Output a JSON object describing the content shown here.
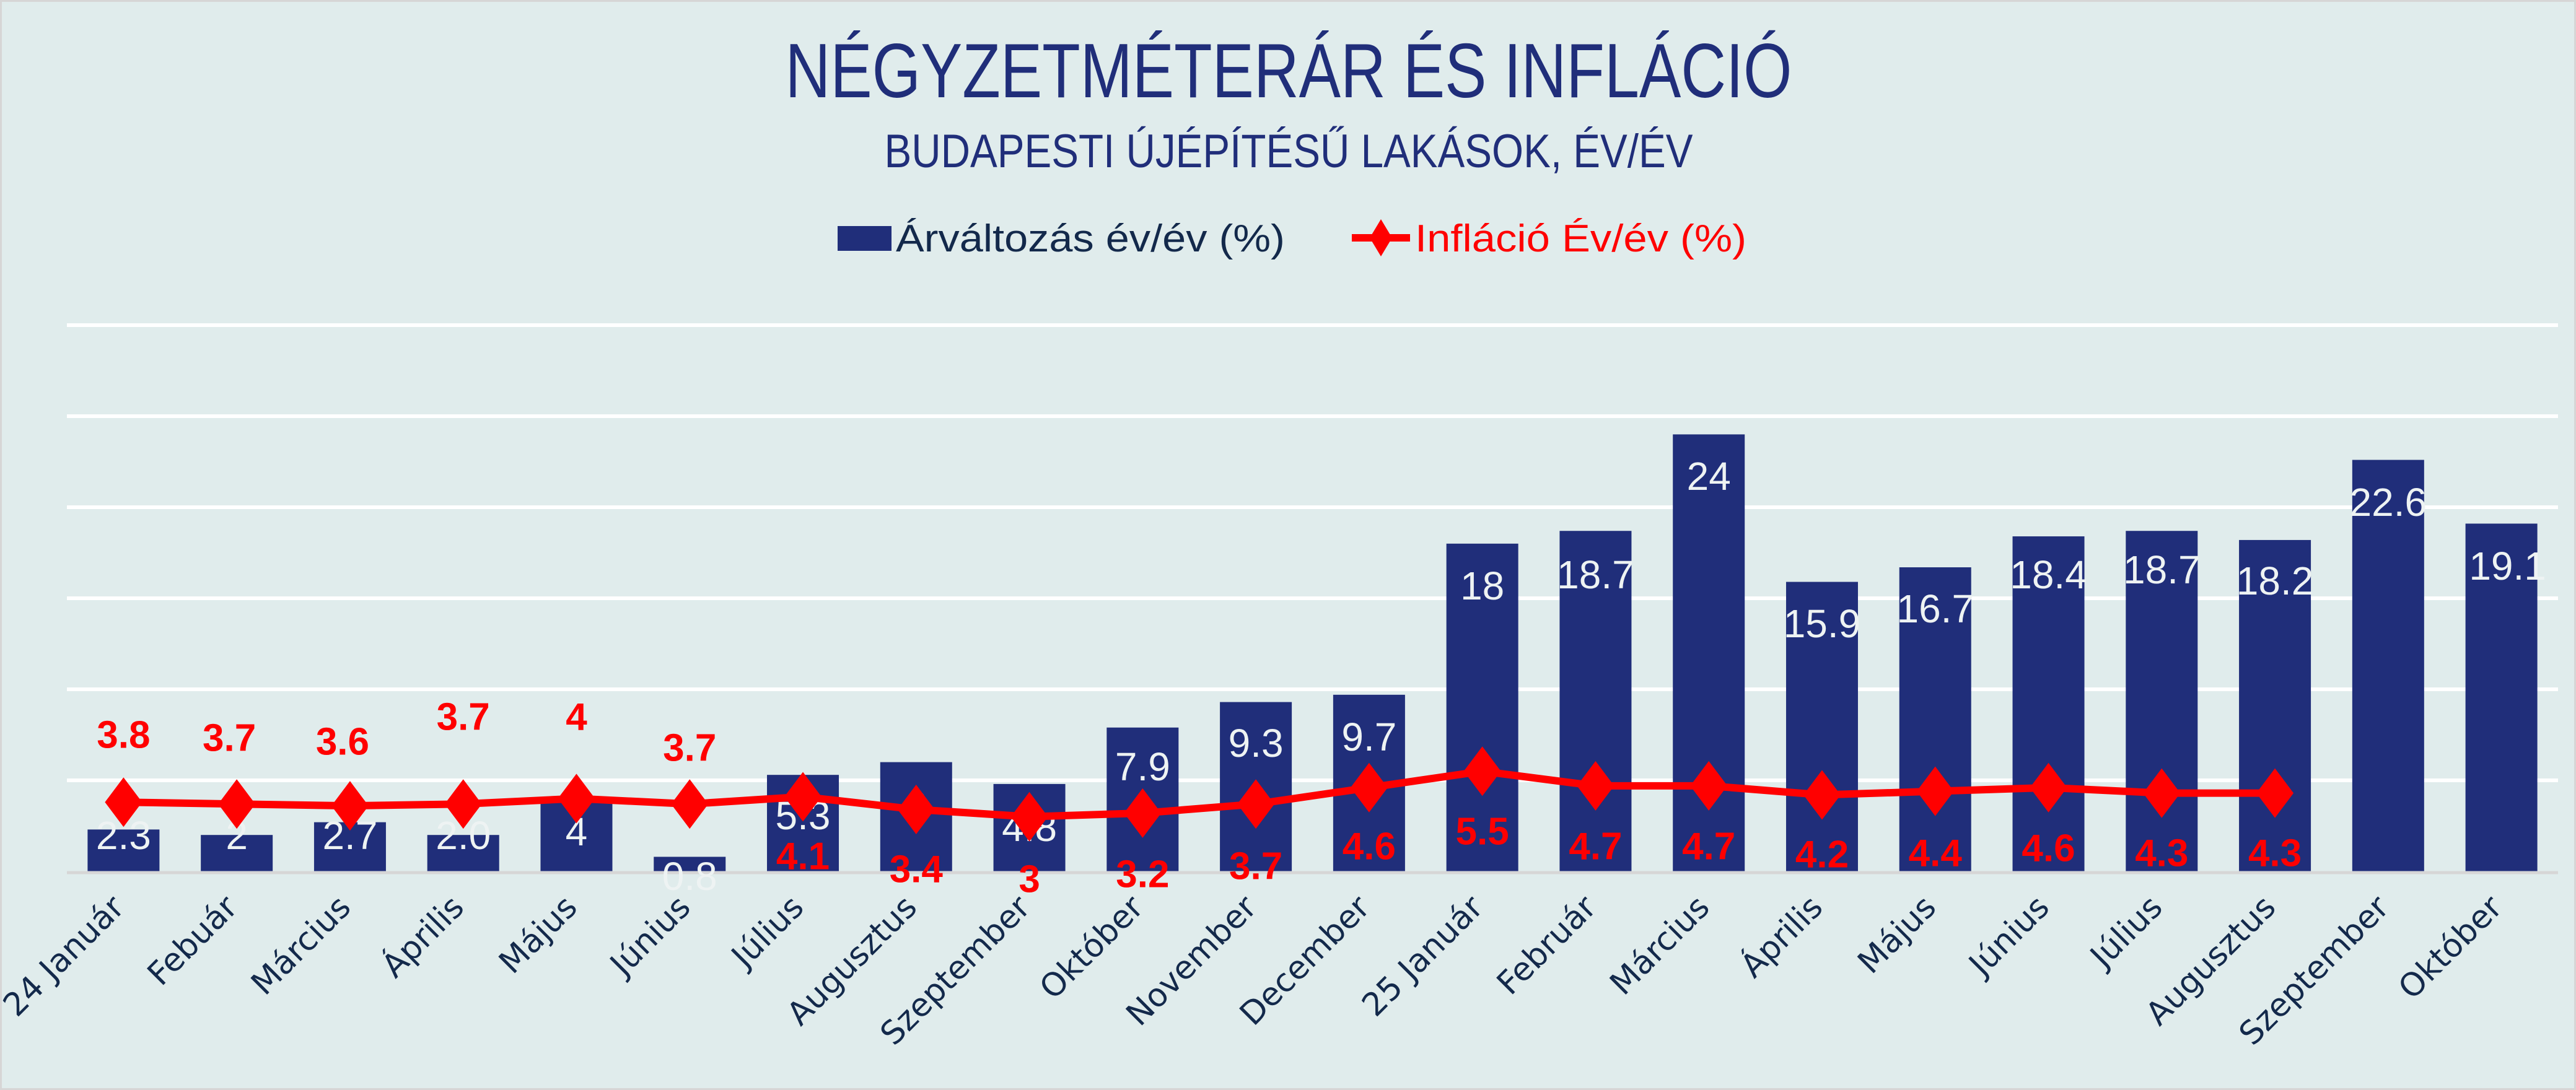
{
  "chart_data": {
    "type": "bar",
    "title": "NÉGYZETMÉTERÁR ÉS INFLÁCIÓ",
    "subtitle": "BUDAPESTI ÚJÉPÍTÉSŰ LAKÁSOK, ÉV/ÉV",
    "xlabel": "",
    "ylabel": "",
    "ylim": [
      0,
      30
    ],
    "y_gridlines": [
      0,
      5,
      10,
      15,
      20,
      25,
      30
    ],
    "y_tick_labels_visible": false,
    "grid": true,
    "legend_position": "top-center",
    "categories": [
      "24 Január",
      "Febuár",
      "Március",
      "Április",
      "Május",
      "Június",
      "Július",
      "Augusztus",
      "Szeptember",
      "Október",
      "November",
      "December",
      "25 Január",
      "Február",
      "Március",
      "Április",
      "Május",
      "Június",
      "Július",
      "Augusztus",
      "Szeptember",
      "Október"
    ],
    "series": [
      {
        "name": "Árváltozás év/év (%)",
        "type": "bar",
        "color": "#202e7a",
        "values": [
          2.3,
          2,
          2.7,
          2.0,
          4,
          0.8,
          5.3,
          6,
          4.8,
          7.9,
          9.3,
          9.7,
          18,
          18.7,
          24,
          15.9,
          16.7,
          18.4,
          18.7,
          18.2,
          22.6,
          19.1
        ],
        "labels": [
          "2.3",
          "2",
          "2.7",
          "2.0",
          "4",
          "0.8",
          "5.3",
          "6",
          "4.8",
          "7.9",
          "9.3",
          "9.7",
          "18",
          "18.7",
          "24",
          "15.9",
          "16.7",
          "18.4",
          "18.7",
          "18.2",
          "22.6",
          "19.1"
        ]
      },
      {
        "name": "Infláció Év/év (%)",
        "type": "line",
        "marker": "diamond",
        "color": "#ff0000",
        "values": [
          3.8,
          3.7,
          3.6,
          3.7,
          4,
          3.7,
          4.1,
          3.4,
          3,
          3.2,
          3.7,
          4.6,
          5.5,
          4.7,
          4.7,
          4.2,
          4.4,
          4.6,
          4.3,
          4.3,
          null,
          null
        ],
        "labels": [
          "3.8",
          "3.7",
          "3.6",
          "3.7",
          "4",
          "3.7",
          "4.1",
          "3.4",
          "3",
          "3.2",
          "3.7",
          "4.6",
          "5.5",
          "4.7",
          "4.7",
          "4.2",
          "4.4",
          "4.6",
          "4.3",
          "4.3",
          null,
          null
        ]
      }
    ]
  },
  "colors": {
    "background": "#e0ecec",
    "title": "#202e7a",
    "bar": "#202e7a",
    "inflation": "#ff0000",
    "axis_text": "#13294b",
    "bar_label": "#eef3f3"
  }
}
